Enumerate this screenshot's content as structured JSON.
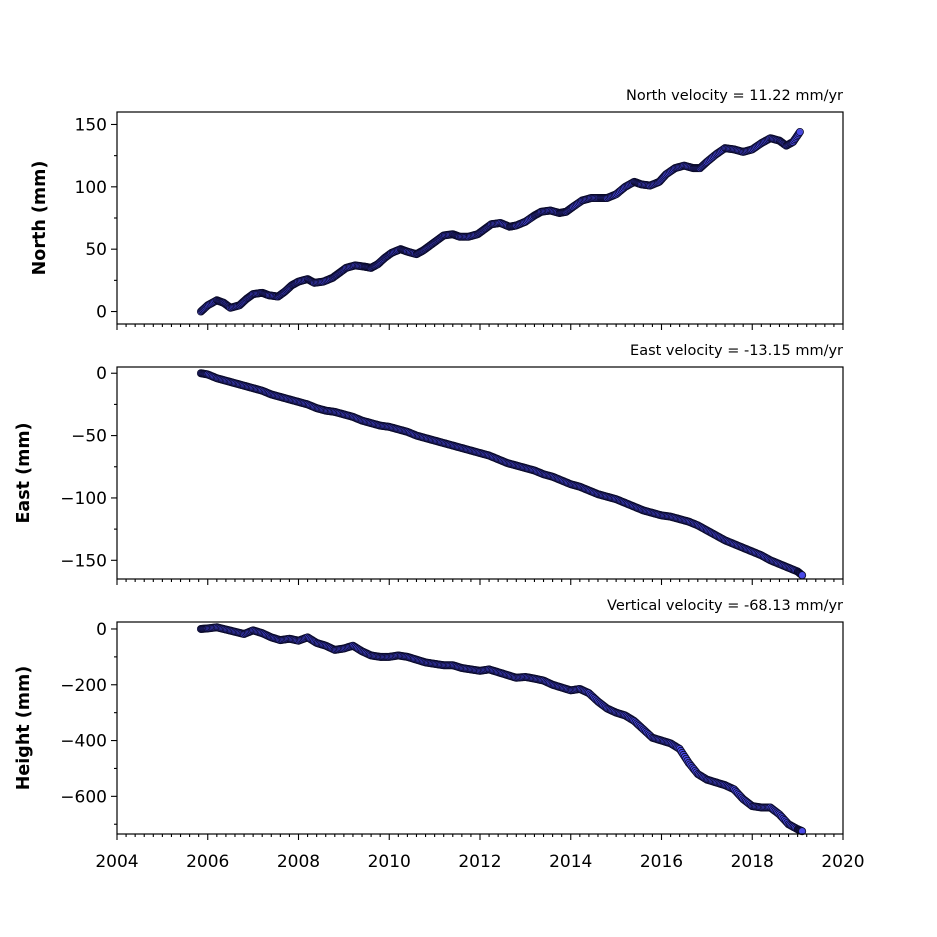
{
  "chart_data": [
    {
      "type": "scatter",
      "title": "North velocity = 11.22 mm/yr",
      "ylabel": "North (mm)",
      "xlim": [
        2004,
        2020
      ],
      "ylim": [
        -10,
        160
      ],
      "yticks": [
        0,
        50,
        100,
        150
      ],
      "show_xtick_labels": false,
      "series": [
        {
          "x": [
            2005.85,
            2006.0,
            2006.2,
            2006.35,
            2006.5,
            2006.7,
            2006.85,
            2007.0,
            2007.2,
            2007.35,
            2007.55,
            2007.7,
            2007.85,
            2008.0,
            2008.2,
            2008.35,
            2008.55,
            2008.75,
            2008.9,
            2009.05,
            2009.25,
            2009.45,
            2009.6,
            2009.75,
            2009.9,
            2010.05,
            2010.25,
            2010.4,
            2010.6,
            2010.75,
            2010.9,
            2011.05,
            2011.2,
            2011.4,
            2011.55,
            2011.75,
            2011.95,
            2012.1,
            2012.25,
            2012.45,
            2012.65,
            2012.8,
            2013.0,
            2013.2,
            2013.35,
            2013.55,
            2013.75,
            2013.9,
            2014.05,
            2014.25,
            2014.45,
            2014.65,
            2014.8,
            2015.0,
            2015.2,
            2015.4,
            2015.55,
            2015.75,
            2015.95,
            2016.1,
            2016.3,
            2016.5,
            2016.7,
            2016.85,
            2017.0,
            2017.2,
            2017.4,
            2017.6,
            2017.8,
            2018.0,
            2018.2,
            2018.4,
            2018.6,
            2018.75,
            2018.9,
            2019.05
          ],
          "y": [
            0,
            5,
            9,
            7,
            3,
            5,
            10,
            14,
            15,
            13,
            12,
            16,
            21,
            24,
            26,
            23,
            24,
            27,
            31,
            35,
            37,
            36,
            35,
            38,
            43,
            47,
            50,
            48,
            46,
            49,
            53,
            57,
            61,
            62,
            60,
            60,
            62,
            66,
            70,
            71,
            68,
            69,
            72,
            77,
            80,
            81,
            79,
            80,
            84,
            89,
            91,
            91,
            91,
            94,
            100,
            104,
            102,
            101,
            104,
            110,
            115,
            117,
            115,
            115,
            120,
            126,
            131,
            130,
            128,
            130,
            135,
            139,
            137,
            133,
            136,
            144
          ]
        }
      ]
    },
    {
      "type": "scatter",
      "title": "East velocity = -13.15 mm/yr",
      "ylabel": "East (mm)",
      "xlim": [
        2004,
        2020
      ],
      "ylim": [
        -165,
        5
      ],
      "yticks": [
        0,
        -50,
        -100,
        -150
      ],
      "show_xtick_labels": false,
      "series": [
        {
          "x": [
            2005.85,
            2006.0,
            2006.2,
            2006.4,
            2006.6,
            2006.8,
            2007.0,
            2007.2,
            2007.4,
            2007.6,
            2007.8,
            2008.0,
            2008.2,
            2008.4,
            2008.6,
            2008.8,
            2009.0,
            2009.2,
            2009.4,
            2009.6,
            2009.8,
            2010.0,
            2010.2,
            2010.4,
            2010.6,
            2010.8,
            2011.0,
            2011.2,
            2011.4,
            2011.6,
            2011.8,
            2012.0,
            2012.2,
            2012.4,
            2012.6,
            2012.8,
            2013.0,
            2013.2,
            2013.4,
            2013.6,
            2013.8,
            2014.0,
            2014.2,
            2014.4,
            2014.6,
            2014.8,
            2015.0,
            2015.2,
            2015.4,
            2015.6,
            2015.8,
            2016.0,
            2016.2,
            2016.4,
            2016.6,
            2016.8,
            2017.0,
            2017.2,
            2017.4,
            2017.6,
            2017.8,
            2018.0,
            2018.2,
            2018.4,
            2018.6,
            2018.8,
            2019.0,
            2019.1
          ],
          "y": [
            0,
            -1,
            -4,
            -6,
            -8,
            -10,
            -12,
            -14,
            -17,
            -19,
            -21,
            -23,
            -25,
            -28,
            -30,
            -31,
            -33,
            -35,
            -38,
            -40,
            -42,
            -43,
            -45,
            -47,
            -50,
            -52,
            -54,
            -56,
            -58,
            -60,
            -62,
            -64,
            -66,
            -69,
            -72,
            -74,
            -76,
            -78,
            -81,
            -83,
            -86,
            -89,
            -91,
            -94,
            -97,
            -99,
            -101,
            -104,
            -107,
            -110,
            -112,
            -114,
            -115,
            -117,
            -119,
            -122,
            -126,
            -130,
            -134,
            -137,
            -140,
            -143,
            -146,
            -150,
            -153,
            -156,
            -159,
            -162
          ]
        }
      ]
    },
    {
      "type": "scatter",
      "title": "Vertical velocity = -68.13 mm/yr",
      "ylabel": "Height (mm)",
      "xlim": [
        2004,
        2020
      ],
      "ylim": [
        -735,
        25
      ],
      "yticks": [
        0,
        -200,
        -400,
        -600
      ],
      "xticks": [
        2004,
        2006,
        2008,
        2010,
        2012,
        2014,
        2016,
        2018,
        2020
      ],
      "show_xtick_labels": true,
      "series": [
        {
          "x": [
            2005.85,
            2006.0,
            2006.2,
            2006.4,
            2006.6,
            2006.8,
            2007.0,
            2007.2,
            2007.4,
            2007.6,
            2007.8,
            2008.0,
            2008.2,
            2008.4,
            2008.6,
            2008.8,
            2009.0,
            2009.2,
            2009.4,
            2009.6,
            2009.8,
            2010.0,
            2010.2,
            2010.4,
            2010.6,
            2010.8,
            2011.0,
            2011.2,
            2011.4,
            2011.6,
            2011.8,
            2012.0,
            2012.2,
            2012.4,
            2012.6,
            2012.8,
            2013.0,
            2013.2,
            2013.4,
            2013.6,
            2013.8,
            2014.0,
            2014.2,
            2014.4,
            2014.6,
            2014.8,
            2015.0,
            2015.2,
            2015.4,
            2015.6,
            2015.8,
            2016.0,
            2016.2,
            2016.4,
            2016.6,
            2016.8,
            2017.0,
            2017.2,
            2017.4,
            2017.6,
            2017.8,
            2018.0,
            2018.2,
            2018.4,
            2018.6,
            2018.8,
            2019.0,
            2019.1
          ],
          "y": [
            0,
            2,
            6,
            -2,
            -10,
            -18,
            -5,
            -15,
            -30,
            -40,
            -35,
            -42,
            -30,
            -50,
            -60,
            -75,
            -70,
            -60,
            -80,
            -95,
            -100,
            -100,
            -95,
            -100,
            -110,
            -120,
            -125,
            -130,
            -130,
            -140,
            -145,
            -150,
            -145,
            -155,
            -165,
            -175,
            -172,
            -178,
            -185,
            -200,
            -210,
            -220,
            -215,
            -230,
            -260,
            -285,
            -300,
            -310,
            -330,
            -360,
            -390,
            -400,
            -410,
            -430,
            -480,
            -520,
            -540,
            -550,
            -560,
            -575,
            -610,
            -635,
            -640,
            -640,
            -665,
            -700,
            -718,
            -725
          ]
        }
      ]
    }
  ]
}
